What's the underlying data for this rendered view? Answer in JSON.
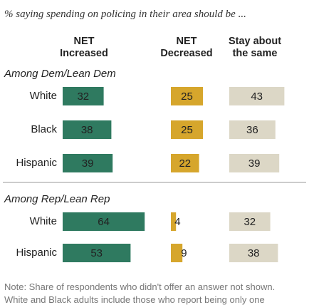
{
  "chart_data": {
    "type": "bar",
    "subtitle": "% saying spending on policing in their area should be ...",
    "series": [
      {
        "name": "NET Increased",
        "color": "#2f7a60"
      },
      {
        "name": "NET Decreased",
        "color": "#d6a62c"
      },
      {
        "name": "Stay about the same",
        "color": "#dcd7c6"
      }
    ],
    "groups": [
      {
        "label": "Among Dem/Lean Dem",
        "rows": [
          {
            "category": "White",
            "values": [
              32,
              25,
              43
            ]
          },
          {
            "category": "Black",
            "values": [
              38,
              25,
              36
            ]
          },
          {
            "category": "Hispanic",
            "values": [
              39,
              22,
              39
            ]
          }
        ]
      },
      {
        "label": "Among Rep/Lean Rep",
        "rows": [
          {
            "category": "White",
            "values": [
              64,
              4,
              32
            ]
          },
          {
            "category": "Hispanic",
            "values": [
              53,
              9,
              38
            ]
          }
        ]
      }
    ],
    "notes": [
      "Note: Share of respondents who didn't offer an answer not shown.",
      "White and Black adults include those who report being only one"
    ]
  }
}
